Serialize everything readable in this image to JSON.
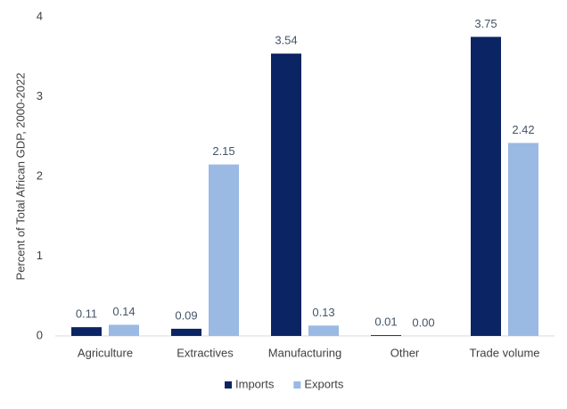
{
  "chart_data": {
    "type": "bar",
    "y_label": "Percent of Total African GDP, 2000-2022",
    "categories": [
      "Agriculture",
      "Extractives",
      "Manufacturing",
      "Other",
      "Trade volume"
    ],
    "series": [
      {
        "name": "Imports",
        "color": "#0b2463",
        "values": [
          0.11,
          0.09,
          3.54,
          0.01,
          3.75
        ],
        "value_labels": [
          "0.11",
          "0.09",
          "3.54",
          "0.01",
          "3.75"
        ]
      },
      {
        "name": "Exports",
        "color": "#9ab9e3",
        "values": [
          0.14,
          2.15,
          0.13,
          0,
          2.42
        ],
        "value_labels": [
          "0.14",
          "2.15",
          "0.13",
          "0.00",
          "2.42"
        ]
      }
    ],
    "ylim": [
      0,
      4
    ],
    "yticks": [
      0,
      1,
      2,
      3,
      4
    ],
    "grid": false,
    "legend": "bottom"
  }
}
